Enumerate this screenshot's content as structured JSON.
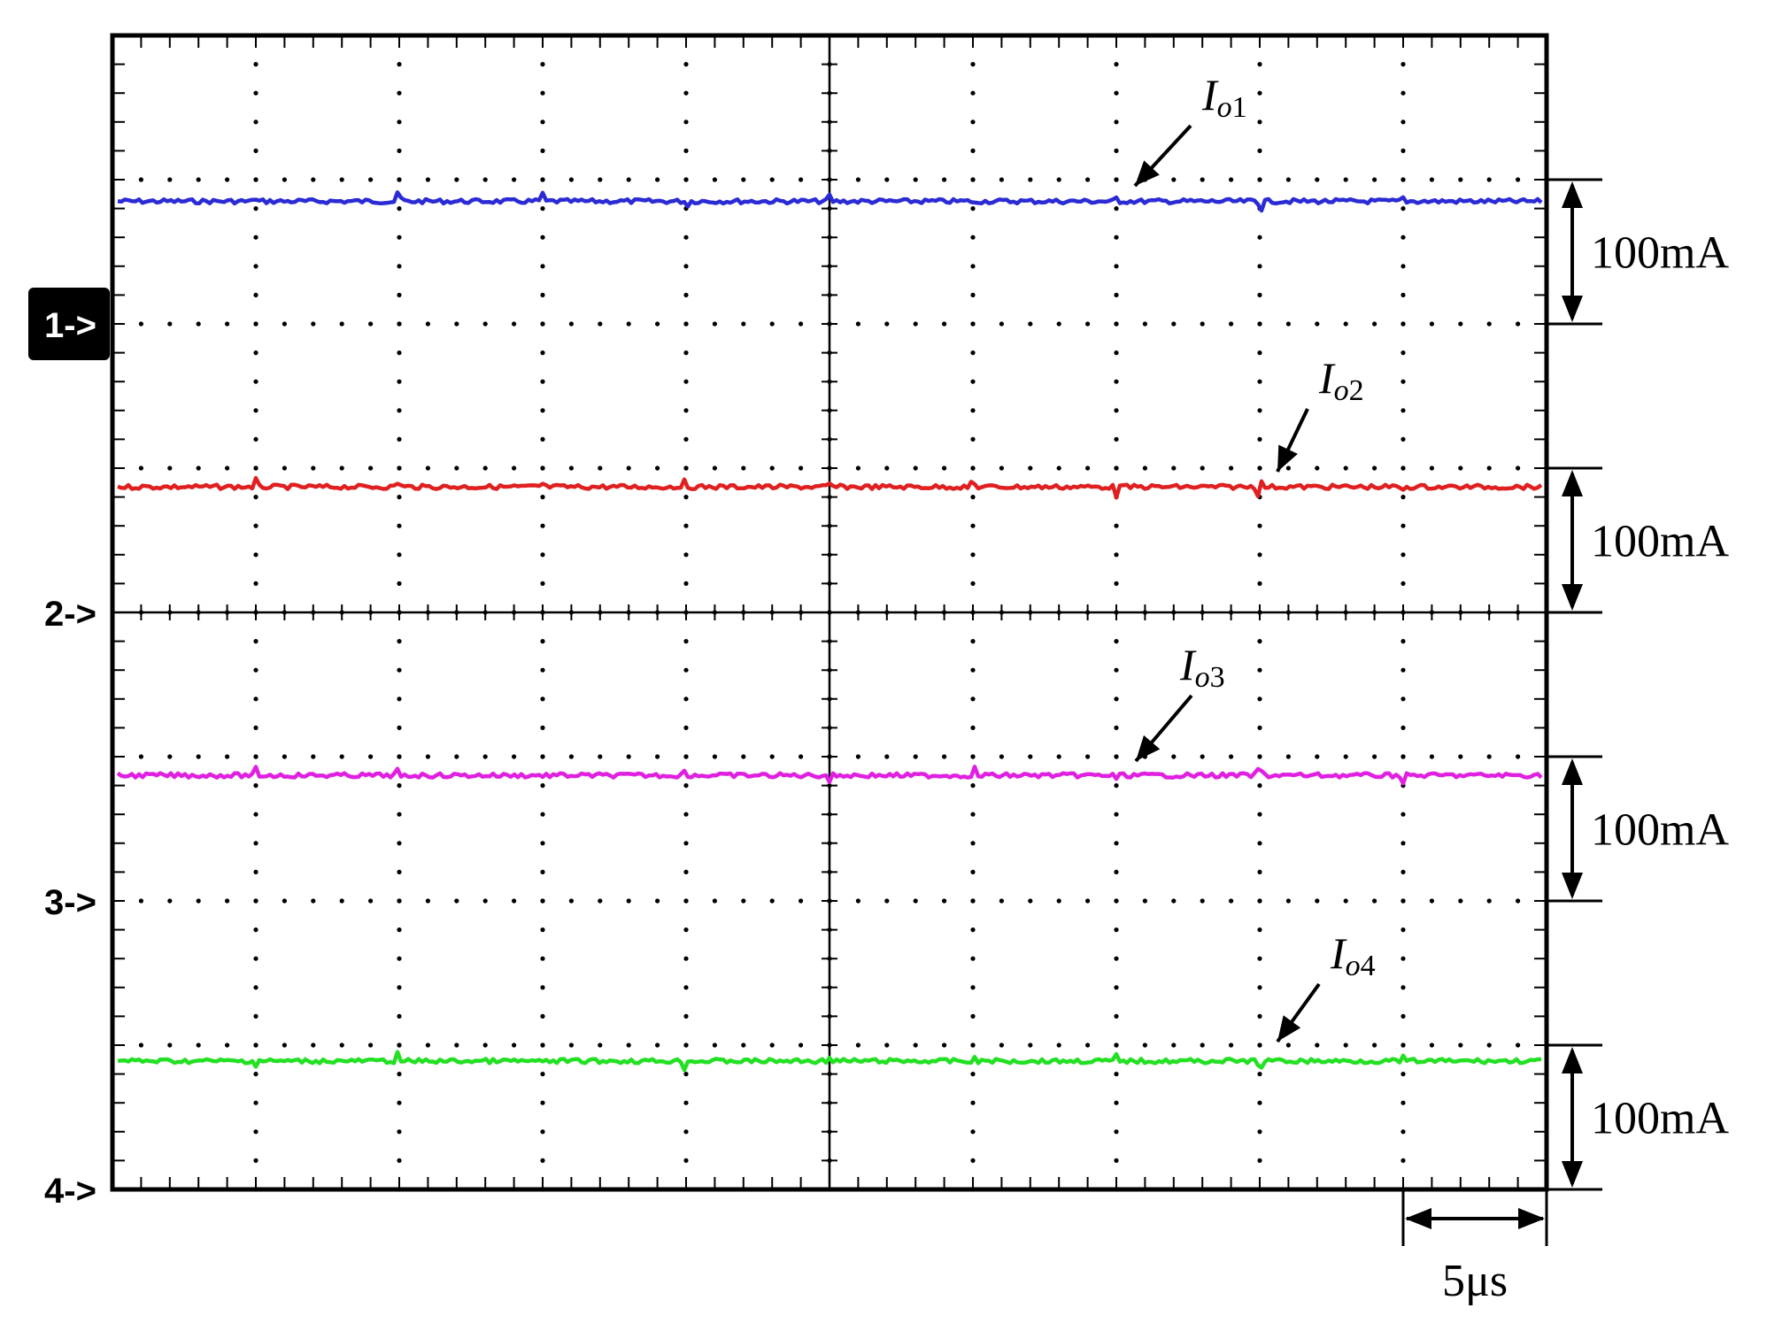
{
  "chart_data": {
    "type": "line",
    "title": "",
    "xlabel": "",
    "ylabel": "",
    "grid": true,
    "grid_divisions": {
      "x": 10,
      "y": 8
    },
    "x_scale_label": "5μs",
    "x_range_us": [
      0,
      50
    ],
    "channel_markers": [
      {
        "id": 1,
        "label": "1",
        "arrow": "->",
        "highlighted": true,
        "reference_div": 6
      },
      {
        "id": 2,
        "label": "2",
        "arrow": "->",
        "highlighted": false,
        "reference_div": 4
      },
      {
        "id": 3,
        "label": "3",
        "arrow": "->",
        "highlighted": false,
        "reference_div": 2
      },
      {
        "id": 4,
        "label": "4",
        "arrow": "->",
        "highlighted": false,
        "reference_div": 0
      }
    ],
    "series": [
      {
        "label_main": "I",
        "label_sub": "o1",
        "scale_label": "100mA",
        "color": "#2b2bd6",
        "level_div": 6.85,
        "scale_top_div": 7,
        "scale_bottom_div": 6
      },
      {
        "label_main": "I",
        "label_sub": "o2",
        "scale_label": "100mA",
        "color": "#e02020",
        "level_div": 4.87,
        "scale_top_div": 5,
        "scale_bottom_div": 4
      },
      {
        "label_main": "I",
        "label_sub": "o3",
        "scale_label": "100mA",
        "color": "#e020e0",
        "level_div": 2.87,
        "scale_top_div": 3,
        "scale_bottom_div": 2
      },
      {
        "label_main": "I",
        "label_sub": "o4",
        "scale_label": "100mA",
        "color": "#22e022",
        "level_div": 0.89,
        "scale_top_div": 1,
        "scale_bottom_div": 0
      }
    ]
  }
}
